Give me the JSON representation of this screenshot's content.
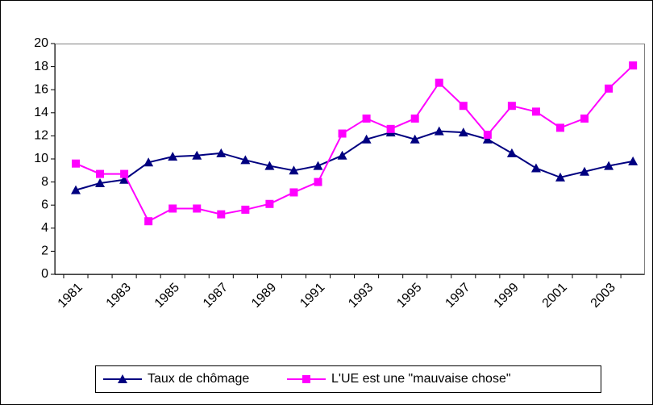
{
  "chart_data": {
    "type": "line",
    "categories": [
      "1981",
      null,
      "1983",
      null,
      "1985",
      null,
      "1987",
      null,
      "1989",
      null,
      "1991",
      null,
      "1993",
      null,
      "1995",
      null,
      "1997",
      null,
      "1999",
      null,
      "2001",
      null,
      "2003",
      null
    ],
    "series": [
      {
        "name": "Taux de chômage",
        "color": "#000080",
        "marker": "triangle",
        "values": [
          7.3,
          7.9,
          8.2,
          9.7,
          10.2,
          10.3,
          10.5,
          9.9,
          9.4,
          9.0,
          9.4,
          10.3,
          11.7,
          12.3,
          11.7,
          12.4,
          12.3,
          11.7,
          10.5,
          9.2,
          8.4,
          8.9,
          9.4,
          9.8
        ]
      },
      {
        "name": "L'UE est une \"mauvaise chose\"",
        "color": "#ff00ff",
        "marker": "square",
        "values": [
          9.6,
          8.7,
          8.7,
          4.6,
          5.7,
          5.7,
          5.2,
          5.6,
          6.1,
          7.1,
          8.0,
          12.2,
          13.5,
          12.6,
          13.5,
          16.6,
          14.6,
          12.1,
          14.6,
          14.1,
          12.7,
          13.5,
          16.1,
          18.1
        ]
      }
    ],
    "ylim": [
      0,
      20
    ],
    "yticks": [
      0,
      2,
      4,
      6,
      8,
      10,
      12,
      14,
      16,
      18,
      20
    ],
    "legend": "bottom"
  }
}
